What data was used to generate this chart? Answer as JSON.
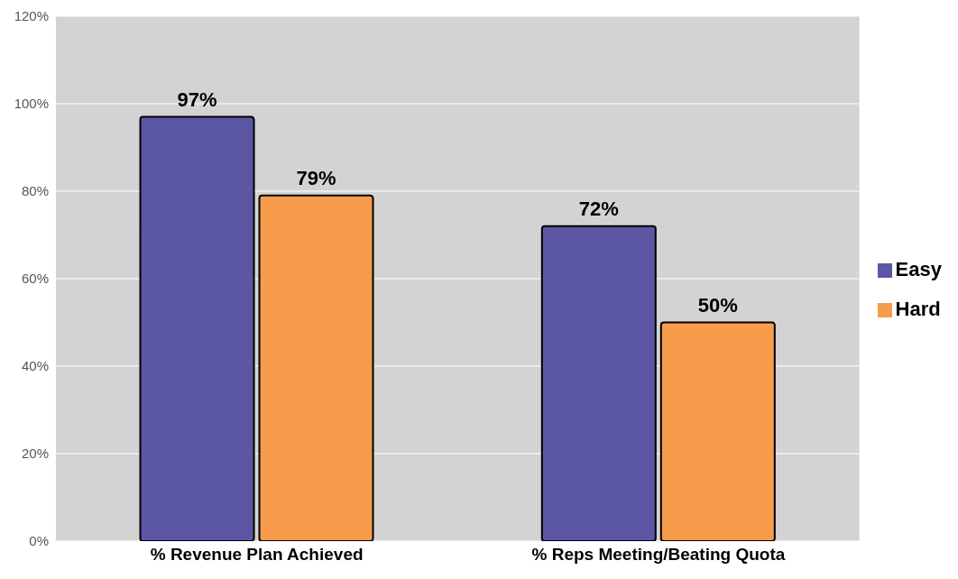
{
  "chart_data": {
    "type": "bar",
    "categories": [
      "% Revenue Plan Achieved",
      "% Reps Meeting/Beating Quota"
    ],
    "series": [
      {
        "name": "Easy",
        "color": "#5b57a4",
        "values": [
          97,
          72
        ],
        "value_labels": [
          "97%",
          "72%"
        ]
      },
      {
        "name": "Hard",
        "color": "#f79c4a",
        "values": [
          79,
          50
        ],
        "value_labels": [
          "79%",
          "50%"
        ]
      }
    ],
    "ylim": [
      0,
      120
    ],
    "yticks": [
      {
        "value": 0,
        "label": "0%"
      },
      {
        "value": 20,
        "label": "20%"
      },
      {
        "value": 40,
        "label": "40%"
      },
      {
        "value": 60,
        "label": "60%"
      },
      {
        "value": 80,
        "label": "80%"
      },
      {
        "value": 100,
        "label": "100%"
      },
      {
        "value": 120,
        "label": "120%"
      }
    ],
    "grid": "y",
    "legend": "right"
  }
}
